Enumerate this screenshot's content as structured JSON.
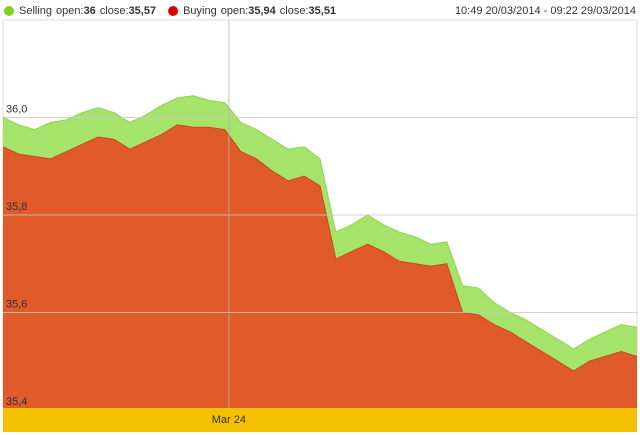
{
  "chart_data": {
    "type": "area",
    "range": "10:49 20/03/2014 - 09:22 29/03/2014",
    "categories": [
      null,
      null,
      null,
      null,
      null,
      null,
      null,
      null,
      null,
      null,
      null,
      null,
      null,
      null,
      "Mar 24",
      null,
      null,
      null,
      null,
      null,
      null,
      null,
      null,
      null,
      null,
      null,
      null,
      null,
      null,
      null,
      null,
      null,
      null,
      null,
      null,
      null,
      null,
      null,
      null,
      null,
      null
    ],
    "series": [
      {
        "name": "Selling",
        "color": "#a6e36b",
        "edge": "#8fd34f",
        "open_label": "open:",
        "open": 36,
        "close_label": "close:",
        "close": {
          "value": 35.57,
          "label": "35,57"
        },
        "values": [
          36.0,
          35.985,
          35.975,
          35.99,
          35.995,
          36.01,
          36.02,
          36.01,
          35.99,
          36.005,
          36.025,
          36.04,
          36.045,
          36.035,
          36.03,
          35.99,
          35.975,
          35.955,
          35.935,
          35.94,
          35.915,
          35.765,
          35.78,
          35.8,
          35.78,
          35.765,
          35.755,
          35.74,
          35.745,
          35.655,
          35.65,
          35.62,
          35.6,
          35.585,
          35.565,
          35.545,
          35.525,
          35.545,
          35.56,
          35.575,
          35.57
        ]
      },
      {
        "name": "Buying",
        "color": "#e05a2a",
        "edge": "#c94a1e",
        "open_label": "open:",
        "open": {
          "value": 35.94,
          "label": "35,94"
        },
        "close_label": "close:",
        "close": {
          "value": 35.51,
          "label": "35,51"
        },
        "values": [
          35.94,
          35.925,
          35.92,
          35.915,
          35.93,
          35.945,
          35.96,
          35.955,
          35.935,
          35.95,
          35.965,
          35.985,
          35.98,
          35.98,
          35.975,
          35.93,
          35.915,
          35.89,
          35.87,
          35.88,
          35.86,
          35.71,
          35.725,
          35.74,
          35.725,
          35.705,
          35.7,
          35.695,
          35.7,
          35.6,
          35.595,
          35.575,
          35.56,
          35.54,
          35.52,
          35.5,
          35.48,
          35.5,
          35.51,
          35.52,
          35.51
        ]
      }
    ],
    "ylim": [
      35.4,
      36.2
    ],
    "yticks": [
      {
        "value": 35.4,
        "label": "35,4"
      },
      {
        "value": 35.6,
        "label": "35,6"
      },
      {
        "value": 35.8,
        "label": "35,8"
      },
      {
        "value": 36.0,
        "label": "36,0"
      }
    ],
    "grid": true
  }
}
